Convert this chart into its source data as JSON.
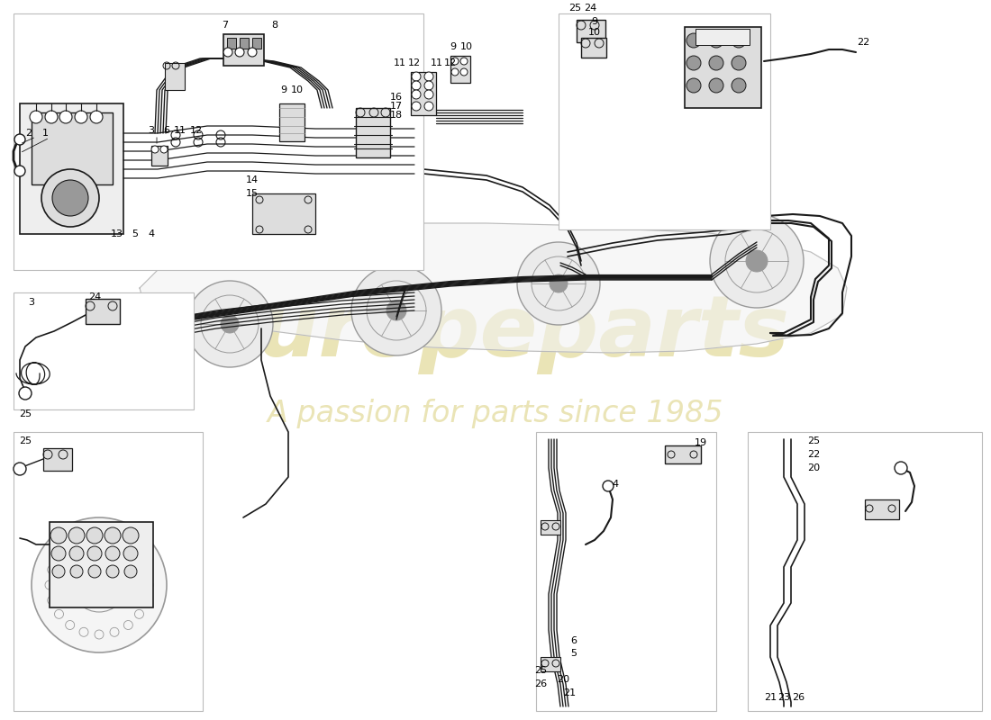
{
  "bg_color": "#ffffff",
  "line_color": "#1a1a1a",
  "gray1": "#bbbbbb",
  "gray2": "#999999",
  "gray3": "#dddddd",
  "gray4": "#eeeeee",
  "wm_color": "#c8b840",
  "wm_alpha": 0.38
}
